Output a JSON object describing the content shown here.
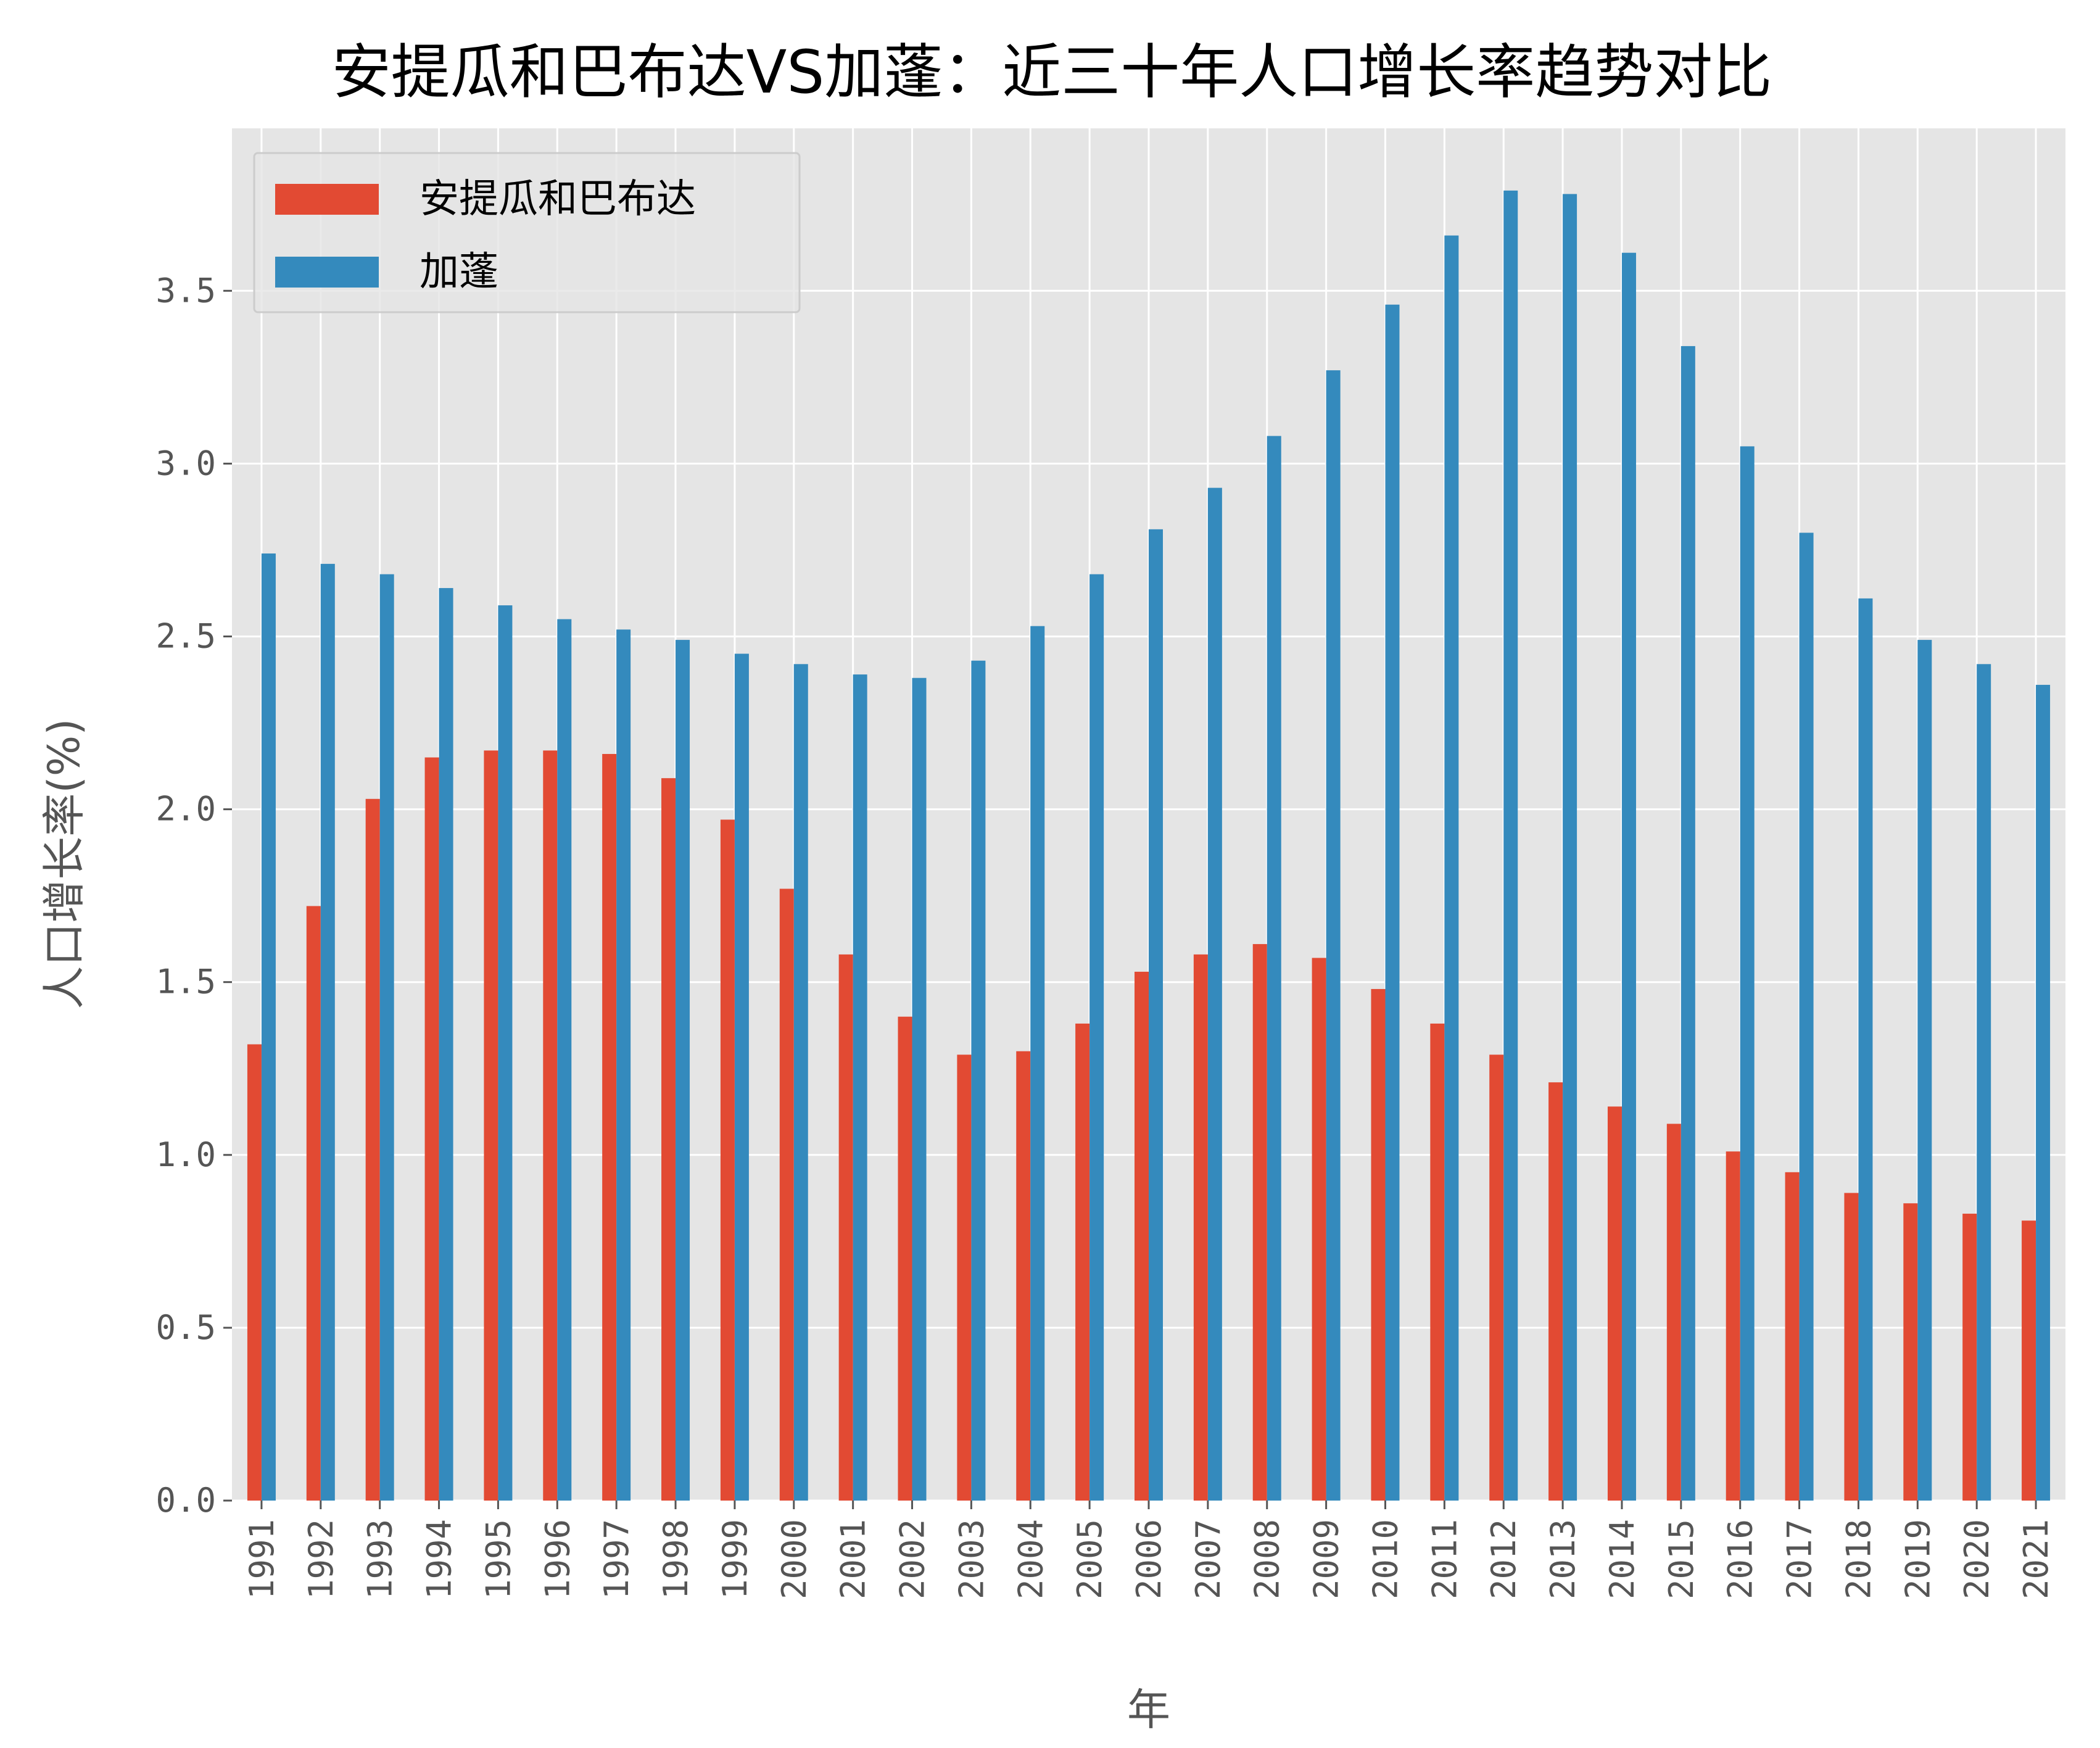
{
  "chart_data": {
    "type": "bar",
    "title": "安提瓜和巴布达VS加蓬：近三十年人口增长率趋势对比",
    "xlabel": "年",
    "ylabel": "人口增长率(%)",
    "categories": [
      "1991",
      "1992",
      "1993",
      "1994",
      "1995",
      "1996",
      "1997",
      "1998",
      "1999",
      "2000",
      "2001",
      "2002",
      "2003",
      "2004",
      "2005",
      "2006",
      "2007",
      "2008",
      "2009",
      "2010",
      "2011",
      "2012",
      "2013",
      "2014",
      "2015",
      "2016",
      "2017",
      "2018",
      "2019",
      "2020",
      "2021"
    ],
    "series": [
      {
        "name": "安提瓜和巴布达",
        "color": "#E24A33",
        "values": [
          1.32,
          1.72,
          2.03,
          2.15,
          2.17,
          2.17,
          2.16,
          2.09,
          1.97,
          1.77,
          1.58,
          1.4,
          1.29,
          1.3,
          1.38,
          1.53,
          1.58,
          1.61,
          1.57,
          1.48,
          1.38,
          1.29,
          1.21,
          1.14,
          1.09,
          1.01,
          0.95,
          0.89,
          0.86,
          0.83,
          0.81
        ]
      },
      {
        "name": "加蓬",
        "color": "#348ABD",
        "values": [
          2.74,
          2.71,
          2.68,
          2.64,
          2.59,
          2.55,
          2.52,
          2.49,
          2.45,
          2.42,
          2.39,
          2.38,
          2.43,
          2.53,
          2.68,
          2.81,
          2.93,
          3.08,
          3.27,
          3.46,
          3.66,
          3.79,
          3.78,
          3.61,
          3.34,
          3.05,
          2.8,
          2.61,
          2.49,
          2.42,
          2.36
        ]
      }
    ],
    "yticks": [
      "0.0",
      "0.5",
      "1.0",
      "1.5",
      "2.0",
      "2.5",
      "3.0",
      "3.5"
    ],
    "ylim": [
      0,
      3.97
    ],
    "grid": true,
    "legend_position": "top-left",
    "background_color": "#E5E5E5",
    "grid_color": "#FFFFFF"
  }
}
